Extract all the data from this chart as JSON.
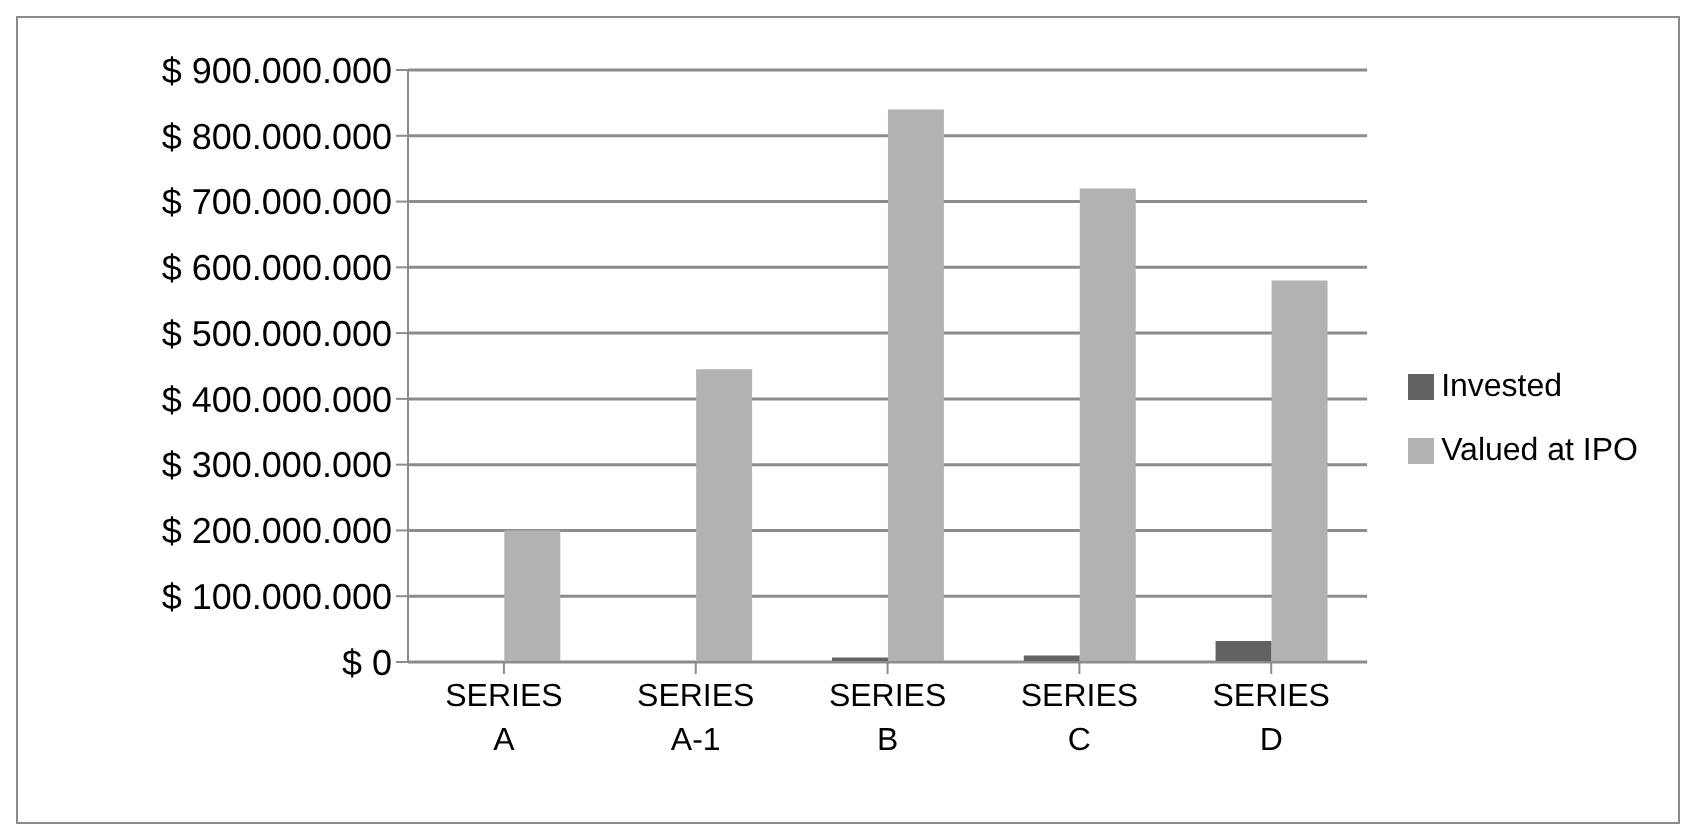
{
  "chart_data": {
    "type": "bar",
    "categories": [
      "SERIES A",
      "SERIES A-1",
      "SERIES B",
      "SERIES C",
      "SERIES D"
    ],
    "series": [
      {
        "name": "Invested",
        "color": "#626262",
        "values": [
          0,
          null,
          7000000,
          10000000,
          32000000
        ]
      },
      {
        "name": "Valued at IPO",
        "color": "#b2b2b2",
        "values": [
          200000000,
          445000000,
          840000000,
          720000000,
          580000000
        ]
      }
    ],
    "ylim": [
      0,
      900000000
    ],
    "yticks": [
      {
        "value": 0,
        "label": "$ 0"
      },
      {
        "value": 100000000,
        "label": "$ 100.000.000"
      },
      {
        "value": 200000000,
        "label": "$ 200.000.000"
      },
      {
        "value": 300000000,
        "label": "$ 300.000.000"
      },
      {
        "value": 400000000,
        "label": "$ 400.000.000"
      },
      {
        "value": 500000000,
        "label": "$ 500.000.000"
      },
      {
        "value": 600000000,
        "label": "$ 600.000.000"
      },
      {
        "value": 700000000,
        "label": "$ 700.000.000"
      },
      {
        "value": 800000000,
        "label": "$ 800.000.000"
      },
      {
        "value": 900000000,
        "label": "$ 900.000.000"
      }
    ],
    "grid": "y",
    "legend": "right"
  }
}
